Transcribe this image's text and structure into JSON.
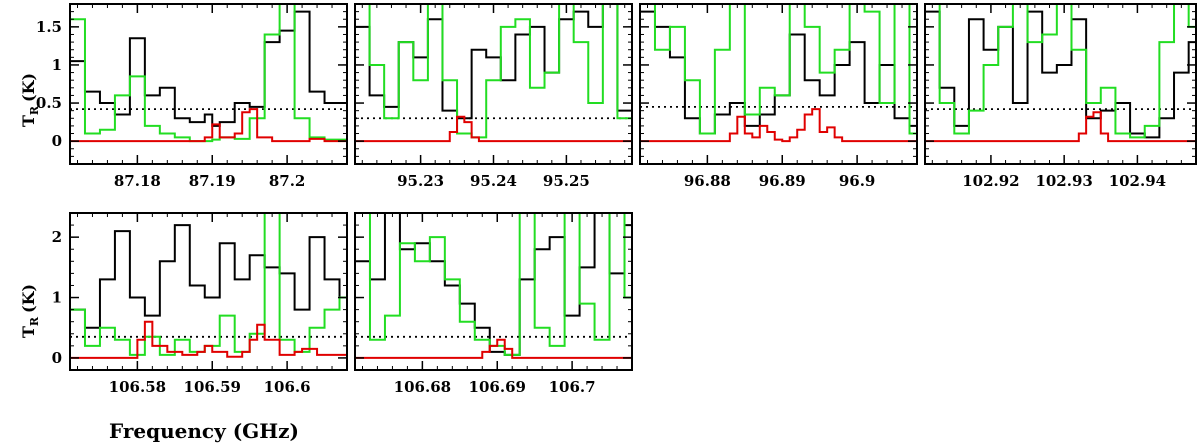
{
  "figure": {
    "xlabel": "Frequency (GHz)",
    "ylabel_main": "T",
    "ylabel_sub": "R",
    "ylabel_unit": "(K)"
  },
  "chart_data": [
    {
      "type": "line",
      "xlim": [
        87.171,
        87.208
      ],
      "ylim": [
        -0.3,
        1.8
      ],
      "xticks": [
        87.18,
        87.19,
        87.2
      ],
      "xtick_labels": [
        "87.18",
        "87.19",
        "87.2"
      ],
      "yticks": [
        0,
        0.5,
        1,
        1.5
      ],
      "ytick_labels": [
        "0",
        "0.5",
        "1",
        "1.5"
      ],
      "threshold": 0.42,
      "series": [
        {
          "color": "#000000",
          "x": [
            87.171,
            87.173,
            87.175,
            87.177,
            87.179,
            87.181,
            87.183,
            87.185,
            87.187,
            87.189,
            87.19,
            87.191,
            87.193,
            87.195,
            87.197,
            87.199,
            87.201,
            87.203,
            87.205,
            87.208
          ],
          "y": [
            1.05,
            0.65,
            0.5,
            0.35,
            1.35,
            0.6,
            0.7,
            0.3,
            0.25,
            0.35,
            0.2,
            0.25,
            0.5,
            0.45,
            1.3,
            1.45,
            1.7,
            0.65,
            0.5,
            0.4
          ]
        },
        {
          "color": "#22dd22",
          "x": [
            87.171,
            87.173,
            87.175,
            87.177,
            87.179,
            87.181,
            87.183,
            87.185,
            87.187,
            87.189,
            87.19,
            87.191,
            87.193,
            87.195,
            87.197,
            87.199,
            87.201,
            87.203,
            87.205,
            87.208
          ],
          "y": [
            1.6,
            0.1,
            0.15,
            0.6,
            0.85,
            0.2,
            0.1,
            0.05,
            0.0,
            0.0,
            0.02,
            0.05,
            0.03,
            0.3,
            1.4,
            1.8,
            0.3,
            0.05,
            0.02,
            0.1
          ]
        },
        {
          "color": "#e00000",
          "x": [
            87.171,
            87.185,
            87.187,
            87.189,
            87.19,
            87.191,
            87.193,
            87.194,
            87.195,
            87.196,
            87.198,
            87.203,
            87.205,
            87.208
          ],
          "y": [
            0,
            0,
            0,
            0.05,
            0.22,
            0.05,
            0.1,
            0.38,
            0.42,
            0.05,
            0,
            0.03,
            0,
            0
          ]
        }
      ]
    },
    {
      "type": "line",
      "xlim": [
        95.221,
        95.259
      ],
      "ylim": [
        -0.3,
        1.8
      ],
      "xticks": [
        95.23,
        95.24,
        95.25
      ],
      "xtick_labels": [
        "95.23",
        "95.24",
        "95.25"
      ],
      "yticks": [
        0,
        0.5,
        1,
        1.5
      ],
      "ytick_labels": [
        "",
        "",
        "",
        ""
      ],
      "threshold": 0.3,
      "series": [
        {
          "color": "#000000",
          "x": [
            95.221,
            95.223,
            95.225,
            95.227,
            95.229,
            95.231,
            95.233,
            95.235,
            95.237,
            95.239,
            95.241,
            95.243,
            95.245,
            95.247,
            95.249,
            95.251,
            95.253,
            95.255,
            95.257,
            95.259
          ],
          "y": [
            1.5,
            0.6,
            0.45,
            1.3,
            1.1,
            1.6,
            0.4,
            0.3,
            1.2,
            1.1,
            0.8,
            1.4,
            1.5,
            0.9,
            1.6,
            1.7,
            1.5,
            1.8,
            0.4,
            0.3
          ]
        },
        {
          "color": "#22dd22",
          "x": [
            95.221,
            95.223,
            95.225,
            95.227,
            95.229,
            95.231,
            95.233,
            95.235,
            95.237,
            95.239,
            95.241,
            95.243,
            95.245,
            95.247,
            95.249,
            95.251,
            95.253,
            95.255,
            95.257,
            95.259
          ],
          "y": [
            1.8,
            1.0,
            0.3,
            1.3,
            0.8,
            1.8,
            0.8,
            0.1,
            0.05,
            0.8,
            1.5,
            1.6,
            0.7,
            0.9,
            1.8,
            1.3,
            0.5,
            1.8,
            0.3,
            0.2
          ]
        },
        {
          "color": "#e00000",
          "x": [
            95.221,
            95.233,
            95.234,
            95.235,
            95.236,
            95.237,
            95.238,
            95.259
          ],
          "y": [
            0,
            0,
            0.12,
            0.32,
            0.25,
            0.05,
            0,
            0
          ]
        }
      ]
    },
    {
      "type": "line",
      "xlim": [
        96.871,
        96.908
      ],
      "ylim": [
        -0.3,
        1.8
      ],
      "xticks": [
        96.88,
        96.89,
        96.9
      ],
      "xtick_labels": [
        "96.88",
        "96.89",
        "96.9"
      ],
      "yticks": [
        0,
        0.5,
        1,
        1.5
      ],
      "ytick_labels": [
        "",
        "",
        "",
        ""
      ],
      "threshold": 0.45,
      "series": [
        {
          "color": "#000000",
          "x": [
            96.871,
            96.873,
            96.875,
            96.877,
            96.879,
            96.881,
            96.883,
            96.885,
            96.887,
            96.889,
            96.891,
            96.893,
            96.895,
            96.897,
            96.899,
            96.901,
            96.903,
            96.905,
            96.907,
            96.908
          ],
          "y": [
            1.7,
            1.5,
            1.1,
            0.3,
            0.1,
            0.35,
            0.5,
            0.2,
            0.35,
            0.6,
            1.4,
            0.8,
            0.6,
            1.0,
            1.3,
            0.5,
            1.0,
            0.3,
            0.2,
            0.3
          ]
        },
        {
          "color": "#22dd22",
          "x": [
            96.871,
            96.873,
            96.875,
            96.877,
            96.879,
            96.881,
            96.883,
            96.885,
            96.887,
            96.889,
            96.891,
            96.893,
            96.895,
            96.897,
            96.899,
            96.901,
            96.903,
            96.905,
            96.907,
            96.908
          ],
          "y": [
            1.8,
            1.2,
            1.5,
            0.8,
            0.1,
            1.2,
            1.8,
            0.35,
            0.7,
            0.6,
            1.8,
            1.5,
            0.9,
            1.2,
            1.8,
            1.7,
            0.5,
            1.8,
            0.1,
            0.1
          ]
        },
        {
          "color": "#e00000",
          "x": [
            96.871,
            96.882,
            96.883,
            96.884,
            96.885,
            96.886,
            96.887,
            96.888,
            96.889,
            96.89,
            96.891,
            96.892,
            96.893,
            96.894,
            96.895,
            96.896,
            96.897,
            96.898,
            96.908
          ],
          "y": [
            0,
            0,
            0.1,
            0.32,
            0.1,
            0.05,
            0.2,
            0.12,
            0.02,
            0,
            0.05,
            0.15,
            0.35,
            0.42,
            0.12,
            0.18,
            0.05,
            0,
            0
          ]
        }
      ]
    },
    {
      "type": "line",
      "xlim": [
        102.911,
        102.948
      ],
      "ylim": [
        -0.3,
        1.8
      ],
      "xticks": [
        102.92,
        102.93,
        102.94
      ],
      "xtick_labels": [
        "102.92",
        "102.93",
        "102.94"
      ],
      "yticks": [
        0,
        0.5,
        1,
        1.5
      ],
      "ytick_labels": [
        "",
        "",
        "",
        ""
      ],
      "threshold": 0.42,
      "series": [
        {
          "color": "#000000",
          "x": [
            102.911,
            102.913,
            102.915,
            102.917,
            102.919,
            102.921,
            102.923,
            102.925,
            102.927,
            102.929,
            102.931,
            102.933,
            102.935,
            102.937,
            102.939,
            102.941,
            102.943,
            102.945,
            102.947,
            102.948
          ],
          "y": [
            1.7,
            0.7,
            0.2,
            1.6,
            1.2,
            1.5,
            0.5,
            1.7,
            0.9,
            1.0,
            1.6,
            0.3,
            0.4,
            0.5,
            0.1,
            0.05,
            0.3,
            0.9,
            1.3,
            1.0
          ]
        },
        {
          "color": "#22dd22",
          "x": [
            102.911,
            102.913,
            102.915,
            102.917,
            102.919,
            102.921,
            102.923,
            102.925,
            102.927,
            102.929,
            102.931,
            102.933,
            102.935,
            102.937,
            102.939,
            102.941,
            102.943,
            102.945,
            102.947,
            102.948
          ],
          "y": [
            1.8,
            0.5,
            0.1,
            0.4,
            1.0,
            1.5,
            1.8,
            1.3,
            1.4,
            1.8,
            1.2,
            0.5,
            0.7,
            0.1,
            0.05,
            0.2,
            1.3,
            1.8,
            1.5,
            1.8
          ]
        },
        {
          "color": "#e00000",
          "x": [
            102.911,
            102.931,
            102.932,
            102.933,
            102.934,
            102.935,
            102.936,
            102.948
          ],
          "y": [
            0,
            0,
            0.1,
            0.32,
            0.38,
            0.1,
            0,
            0
          ]
        }
      ]
    },
    {
      "type": "line",
      "xlim": [
        106.571,
        106.608
      ],
      "ylim": [
        -0.2,
        2.4
      ],
      "xticks": [
        106.58,
        106.59,
        106.6
      ],
      "xtick_labels": [
        "106.58",
        "106.59",
        "106.6"
      ],
      "yticks": [
        0,
        1,
        2
      ],
      "ytick_labels": [
        "0",
        "1",
        "2"
      ],
      "threshold": 0.35,
      "series": [
        {
          "color": "#000000",
          "x": [
            106.571,
            106.573,
            106.575,
            106.577,
            106.579,
            106.581,
            106.583,
            106.585,
            106.587,
            106.589,
            106.591,
            106.593,
            106.595,
            106.597,
            106.599,
            106.601,
            106.603,
            106.605,
            106.607,
            106.608
          ],
          "y": [
            0.8,
            0.5,
            1.3,
            2.1,
            1.0,
            0.7,
            1.6,
            2.2,
            1.2,
            1.0,
            1.9,
            1.3,
            1.7,
            1.5,
            1.4,
            0.8,
            2.0,
            1.3,
            1.0,
            0.9
          ]
        },
        {
          "color": "#22dd22",
          "x": [
            106.571,
            106.573,
            106.575,
            106.577,
            106.579,
            106.581,
            106.583,
            106.585,
            106.587,
            106.589,
            106.591,
            106.593,
            106.595,
            106.597,
            106.599,
            106.601,
            106.603,
            106.605,
            106.607,
            106.608
          ],
          "y": [
            0.8,
            0.2,
            0.5,
            0.3,
            0.05,
            0.35,
            0.05,
            0.3,
            0.1,
            0.2,
            0.7,
            0.1,
            0.4,
            2.4,
            0.3,
            0.1,
            0.5,
            0.8,
            1.0,
            0.4
          ]
        },
        {
          "color": "#e00000",
          "x": [
            106.571,
            106.578,
            106.58,
            106.581,
            106.582,
            106.584,
            106.586,
            106.588,
            106.589,
            106.59,
            106.592,
            106.594,
            106.595,
            106.596,
            106.597,
            106.599,
            106.601,
            106.602,
            106.604,
            106.608
          ],
          "y": [
            0,
            0,
            0.3,
            0.6,
            0.2,
            0.1,
            0.05,
            0.1,
            0.2,
            0.1,
            0.02,
            0.1,
            0.3,
            0.55,
            0.3,
            0.05,
            0.1,
            0.15,
            0.05,
            0
          ]
        }
      ]
    },
    {
      "type": "line",
      "xlim": [
        106.671,
        106.708
      ],
      "ylim": [
        -0.2,
        2.4
      ],
      "xticks": [
        106.68,
        106.69,
        106.7
      ],
      "xtick_labels": [
        "106.68",
        "106.69",
        "106.7"
      ],
      "yticks": [
        0,
        1,
        2
      ],
      "ytick_labels": [
        "",
        "",
        ""
      ],
      "threshold": 0.35,
      "series": [
        {
          "color": "#000000",
          "x": [
            106.671,
            106.673,
            106.675,
            106.677,
            106.679,
            106.681,
            106.683,
            106.685,
            106.687,
            106.689,
            106.691,
            106.693,
            106.695,
            106.697,
            106.699,
            106.701,
            106.703,
            106.705,
            106.707,
            106.708
          ],
          "y": [
            1.6,
            1.3,
            2.4,
            1.8,
            1.9,
            1.6,
            1.2,
            0.9,
            0.5,
            0.1,
            0.05,
            1.3,
            1.8,
            2.0,
            0.7,
            1.5,
            2.4,
            1.4,
            2.2,
            2.0
          ]
        },
        {
          "color": "#22dd22",
          "x": [
            106.671,
            106.673,
            106.675,
            106.677,
            106.679,
            106.681,
            106.683,
            106.685,
            106.687,
            106.689,
            106.691,
            106.693,
            106.695,
            106.697,
            106.699,
            106.701,
            106.703,
            106.705,
            106.707,
            106.708
          ],
          "y": [
            2.4,
            0.3,
            0.7,
            1.9,
            1.6,
            2.0,
            1.3,
            0.6,
            0.3,
            0.2,
            0.05,
            2.4,
            0.5,
            0.2,
            2.4,
            0.9,
            0.3,
            2.4,
            1.0,
            2.4
          ]
        },
        {
          "color": "#e00000",
          "x": [
            106.671,
            106.686,
            106.688,
            106.689,
            106.69,
            106.691,
            106.692,
            106.708
          ],
          "y": [
            0,
            0,
            0.1,
            0.2,
            0.3,
            0.15,
            0,
            0
          ]
        }
      ]
    }
  ]
}
